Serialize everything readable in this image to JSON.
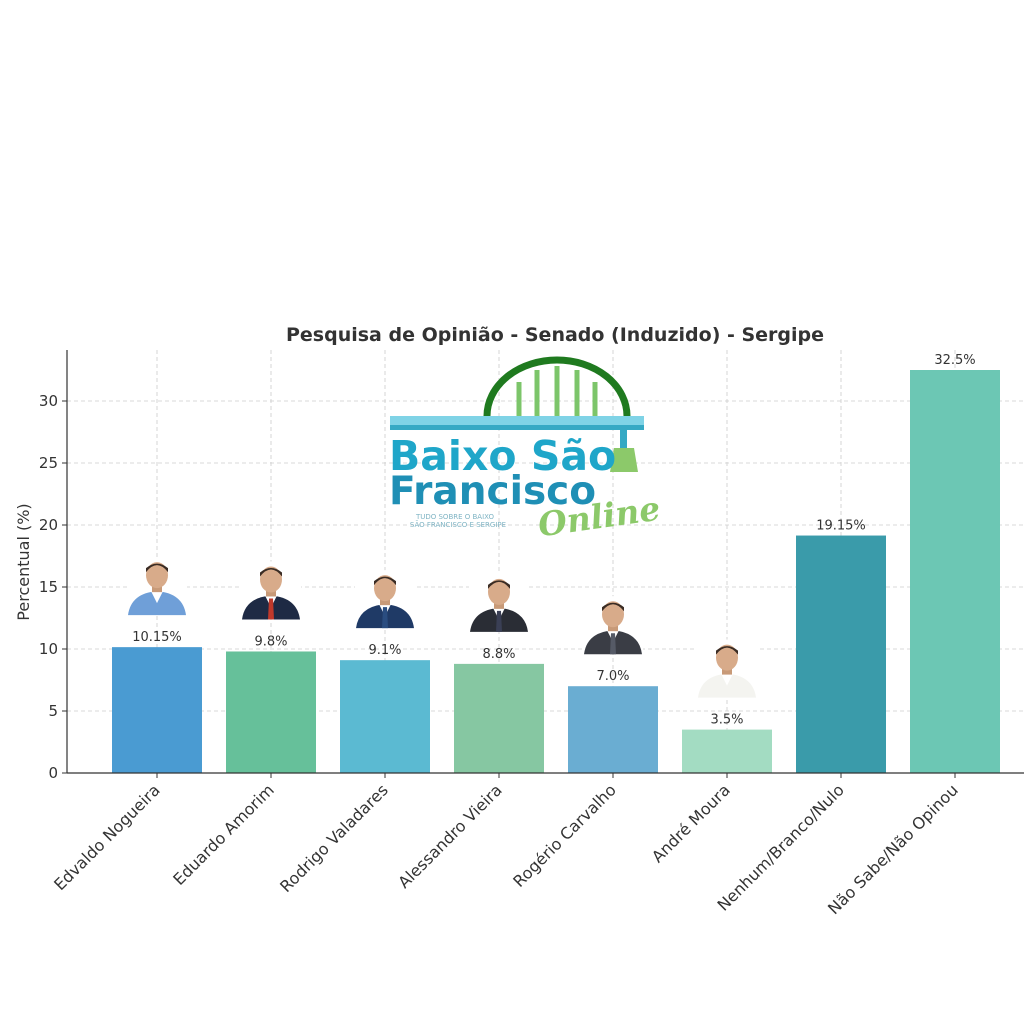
{
  "chart_data": {
    "type": "bar",
    "title": "Pesquisa de Opinião - Senado (Induzido) - Sergipe",
    "xlabel": "",
    "ylabel": "Percentual (%)",
    "ylim": [
      0,
      34
    ],
    "yticks": [
      0,
      5,
      10,
      15,
      20,
      25,
      30
    ],
    "grid": true,
    "categories": [
      "Edvaldo Nogueira",
      "Eduardo Amorim",
      "Rodrigo Valadares",
      "Alessandro Vieira",
      "Rogério Carvalho",
      "André Moura",
      "Nenhum/Branco/Nulo",
      "Não Sabe/Não Opinou"
    ],
    "values": [
      10.15,
      9.8,
      9.1,
      8.8,
      7.0,
      3.5,
      19.15,
      32.5
    ],
    "value_labels": [
      "10.15%",
      "9.8%",
      "9.1%",
      "8.8%",
      "7.0%",
      "3.5%",
      "19.15%",
      "32.5%"
    ],
    "colors": [
      "#4a9bd2",
      "#66c09a",
      "#5bbad2",
      "#86c7a2",
      "#6aadd2",
      "#a3dcc2",
      "#3a9baa",
      "#6cc7b4"
    ],
    "candidate_photos": [
      {
        "name": "portrait-edvaldo-nogueira",
        "suit": "#6f9fd8",
        "tie": "none"
      },
      {
        "name": "portrait-eduardo-amorim",
        "suit": "#1e2a44",
        "tie": "#c0392b"
      },
      {
        "name": "portrait-rodrigo-valadares",
        "suit": "#1f3a66",
        "tie": "#2a4d80"
      },
      {
        "name": "portrait-alessandro-vieira",
        "suit": "#2a2d35",
        "tie": "#3a3f55"
      },
      {
        "name": "portrait-rogerio-carvalho",
        "suit": "#3a3d45",
        "tie": "#555a66"
      },
      {
        "name": "portrait-andre-moura",
        "suit": "#f4f4f0",
        "tie": "none"
      }
    ]
  },
  "watermark": {
    "line1": "Baixo São",
    "line2": "Francisco",
    "script": "Online",
    "tagline1": "TUDO SOBRE O BAIXO",
    "tagline2": "SÃO FRANCISCO E SERGIPE",
    "colors": {
      "arch": "#1f7a1f",
      "arch_bars": "#7cc56a",
      "beam": "#7fd3e6",
      "text": "#1fa6c9",
      "script": "#8cc96a"
    }
  }
}
